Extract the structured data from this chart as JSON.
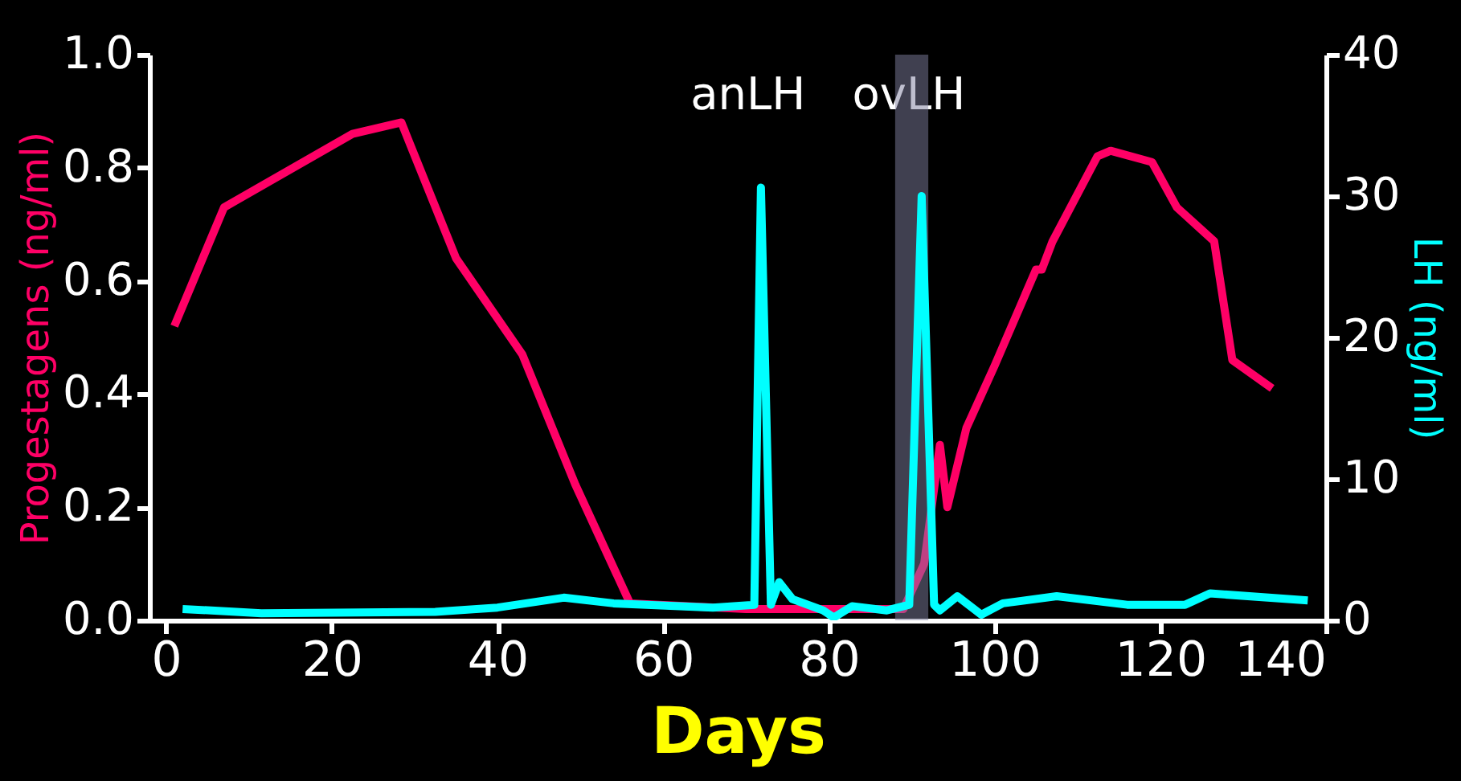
{
  "chart_data": {
    "type": "line",
    "xlabel": "Days",
    "ylabel": "Progestagens (ng/ml)",
    "y2label": "LH (ng/ml)",
    "xlim": [
      -2,
      140
    ],
    "xticks": [
      0,
      20,
      40,
      60,
      80,
      100,
      120,
      140
    ],
    "ylim": [
      0,
      1.0
    ],
    "yticks": [
      {
        "value": 0,
        "label": "0.0"
      },
      0.2,
      0.4,
      0.6,
      0.8,
      {
        "value": 1,
        "label": "1.0"
      }
    ],
    "y2lim": [
      0,
      40
    ],
    "y2ticks": [
      0,
      10,
      20,
      30,
      40
    ],
    "grid": false,
    "marker": "none",
    "line_style": "solid",
    "series": [
      {
        "color": "#ff0066",
        "x": [
          1,
          7,
          22.5,
          28.4,
          35,
          43,
          49.4,
          56,
          70,
          80,
          89,
          91.5,
          93.4,
          94.3,
          96.6,
          100,
          105,
          105.7,
          107,
          112.4,
          114,
          119,
          122,
          126.5,
          128.7,
          133.5
        ],
        "values": [
          0.52,
          0.73,
          0.86,
          0.88,
          0.64,
          0.47,
          0.24,
          0.03,
          0.02,
          0.02,
          0.02,
          0.1,
          0.31,
          0.2,
          0.34,
          0.45,
          0.62,
          0.62,
          0.67,
          0.82,
          0.83,
          0.81,
          0.73,
          0.67,
          0.46,
          0.41
        ]
      },
      {
        "color": "#00ffff",
        "axis": "y2",
        "x": [
          2,
          11.5,
          32.5,
          40,
          48,
          54,
          66,
          71,
          71.8,
          73,
          74,
          75.6,
          79.3,
          80.6,
          82.8,
          87,
          89.7,
          91.2,
          92.7,
          93.4,
          95.5,
          98.4,
          101,
          107.5,
          116,
          123,
          126,
          137.8
        ],
        "values": [
          0.8,
          0.5,
          0.6,
          0.9,
          1.6,
          1.2,
          0.9,
          1.1,
          30.6,
          1.1,
          2.7,
          1.5,
          0.7,
          0.2,
          1,
          0.7,
          1.1,
          30,
          1.1,
          0.7,
          1.7,
          0.4,
          1.2,
          1.7,
          1.1,
          1.1,
          1.9,
          1.4
        ]
      }
    ],
    "bands": [
      {
        "axis": "x",
        "from": 88,
        "to": 92,
        "color": "#8080a0"
      }
    ],
    "annotations": [
      "anLH",
      "ovLH"
    ]
  }
}
